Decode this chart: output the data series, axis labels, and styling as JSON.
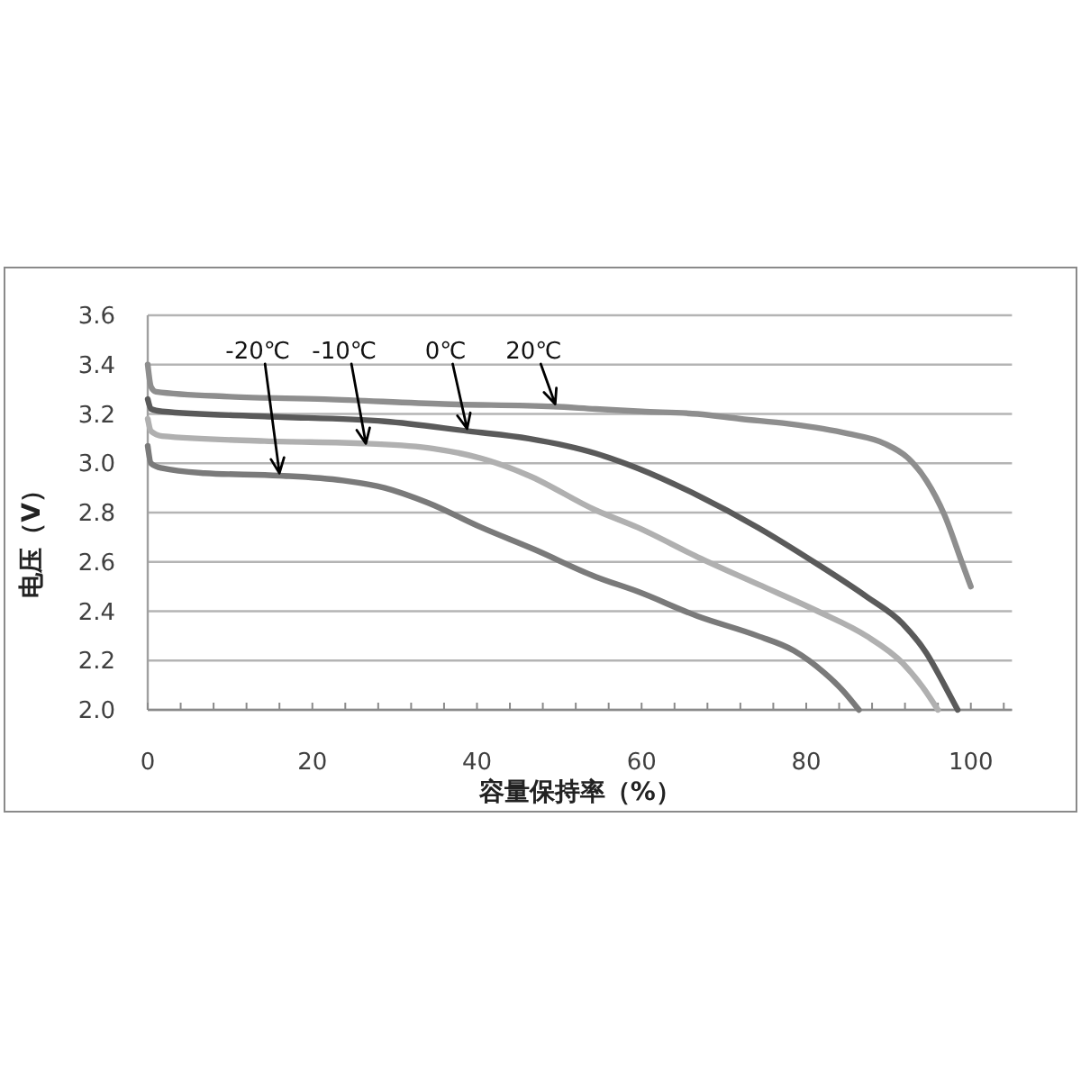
{
  "chart_data": {
    "type": "line",
    "xlabel": "容量保持率（%）",
    "ylabel": "电压（V）",
    "xlim": [
      0,
      105
    ],
    "xticks": [
      0,
      20,
      40,
      60,
      80,
      100
    ],
    "ylim": [
      2,
      3.6
    ],
    "yticks": [
      {
        "value": 2,
        "label": "2.0"
      },
      2.2,
      2.4,
      2.6,
      2.8,
      {
        "value": 3,
        "label": "3.0"
      },
      3.2,
      3.4,
      3.6
    ],
    "grid": "y",
    "line_style": "solid",
    "series": [
      {
        "color": "#8e8e8e",
        "x": [
          0,
          0.4,
          1,
          10,
          21.5,
          36,
          49.3,
          54.4,
          60,
          66.8,
          72,
          77.8,
          82,
          85.1,
          89.5,
          92.4,
          94.6,
          96.8,
          99,
          100
        ],
        "values": [
          3.4,
          3.31,
          3.29,
          3.27,
          3.26,
          3.24,
          3.23,
          3.22,
          3.21,
          3.2,
          3.18,
          3.16,
          3.14,
          3.12,
          3.08,
          3.02,
          2.93,
          2.79,
          2.59,
          2.5
        ]
      },
      {
        "color": "#5a5a5a",
        "x": [
          0,
          0.4,
          1.75,
          14.2,
          28.8,
          39,
          46.3,
          54.4,
          59.5,
          66.8,
          74.1,
          81.4,
          87.3,
          91.7,
          94.6,
          96.8,
          98.4
        ],
        "values": [
          3.26,
          3.22,
          3.21,
          3.19,
          3.17,
          3.13,
          3.1,
          3.04,
          2.98,
          2.87,
          2.74,
          2.59,
          2.46,
          2.35,
          2.23,
          2.1,
          2.0
        ]
      },
      {
        "color": "#b0b0b0",
        "x": [
          0,
          0.4,
          1.75,
          14.2,
          26.6,
          34.6,
          40.5,
          46.3,
          54.4,
          59.5,
          66.8,
          74.1,
          81.4,
          87.3,
          91.7,
          94.2,
          96
        ],
        "values": [
          3.18,
          3.13,
          3.11,
          3.09,
          3.08,
          3.06,
          3.02,
          2.95,
          2.81,
          2.74,
          2.62,
          2.51,
          2.4,
          2.3,
          2.19,
          2.09,
          2.0
        ]
      },
      {
        "color": "#7a7a7a",
        "x": [
          0,
          0.4,
          1.75,
          6.9,
          16,
          23.7,
          28.8,
          34,
          40.5,
          47,
          54.4,
          59.5,
          66.8,
          74.1,
          78.5,
          82.2,
          84.4,
          86.4
        ],
        "values": [
          3.07,
          3.0,
          2.98,
          2.96,
          2.95,
          2.93,
          2.9,
          2.84,
          2.74,
          2.65,
          2.54,
          2.48,
          2.38,
          2.3,
          2.24,
          2.15,
          2.08,
          2.0
        ]
      }
    ],
    "annotations": [
      {
        "text": "-20℃",
        "x": 16,
        "y": 2.96
      },
      {
        "text": "-10℃",
        "x": 26.5,
        "y": 3.08
      },
      {
        "text": "0℃",
        "x": 38.8,
        "y": 3.14
      },
      {
        "text": "20℃",
        "x": 49.5,
        "y": 3.24
      }
    ]
  }
}
